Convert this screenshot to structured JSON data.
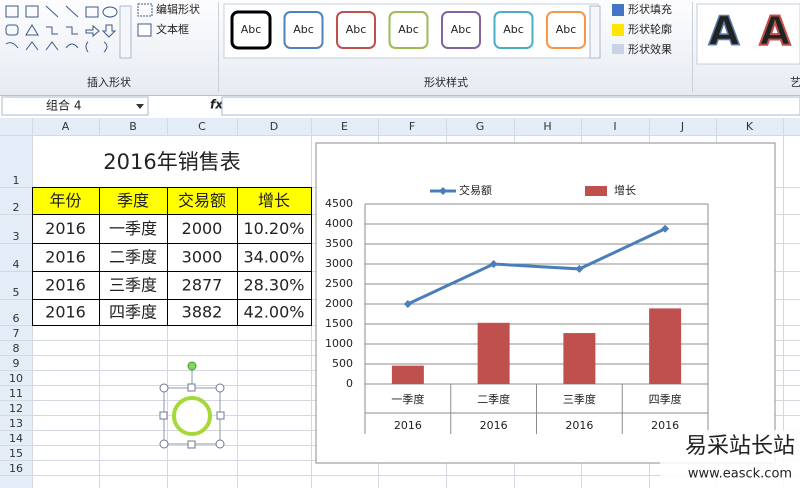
{
  "ribbon": {
    "insert_shapes": {
      "buttons": [
        "编辑形状",
        "文本框"
      ],
      "label": "插入形状"
    },
    "shape_styles": {
      "samples": [
        "Abc",
        "Abc",
        "Abc",
        "Abc",
        "Abc",
        "Abc",
        "Abc"
      ],
      "buttons": [
        "形状填充",
        "形状轮廓",
        "形状效果"
      ],
      "label": "形状样式"
    },
    "wordart": {
      "samples": [
        "A",
        "A"
      ],
      "label": "艺"
    }
  },
  "formula_bar": {
    "name_box": "组合 4",
    "fx": "fx"
  },
  "sheet": {
    "columns": [
      "A",
      "B",
      "C",
      "D",
      "E",
      "F",
      "G",
      "H",
      "I",
      "J",
      "K"
    ],
    "rows": [
      "1",
      "2",
      "3",
      "4",
      "5",
      "6",
      "7",
      "8",
      "9",
      "10",
      "11",
      "12",
      "13",
      "14",
      "15",
      "16"
    ],
    "table": {
      "title": "2016年销售表",
      "header": [
        "年份",
        "季度",
        "交易额",
        "增长"
      ],
      "rows": [
        [
          "2016",
          "一季度",
          "2000",
          "10.20%"
        ],
        [
          "2016",
          "二季度",
          "3000",
          "34.00%"
        ],
        [
          "2016",
          "三季度",
          "2877",
          "28.30%"
        ],
        [
          "2016",
          "四季度",
          "3882",
          "42.00%"
        ]
      ]
    }
  },
  "chart_data": {
    "type": "combo",
    "categories": [
      "一季度",
      "二季度",
      "三季度",
      "四季度"
    ],
    "category_groups": [
      "2016",
      "2016",
      "2016",
      "2016"
    ],
    "series": [
      {
        "name": "交易额",
        "type": "line",
        "color": "#4a7ebb",
        "values": [
          2000,
          3000,
          2877,
          3882
        ]
      },
      {
        "name": "增长",
        "type": "bar",
        "axis": "y2",
        "color": "#c0504d",
        "values": [
          10.2,
          34,
          28.3,
          42
        ]
      }
    ],
    "ylim": [
      0,
      4500
    ],
    "yticks": [
      0,
      500,
      1000,
      1500,
      2000,
      2500,
      3000,
      3500,
      4000,
      4500
    ],
    "y2lim": [
      0,
      100
    ],
    "grid": true,
    "legend": "top"
  },
  "watermark": {
    "text": "易采站长站",
    "url": "www.easck.com"
  }
}
